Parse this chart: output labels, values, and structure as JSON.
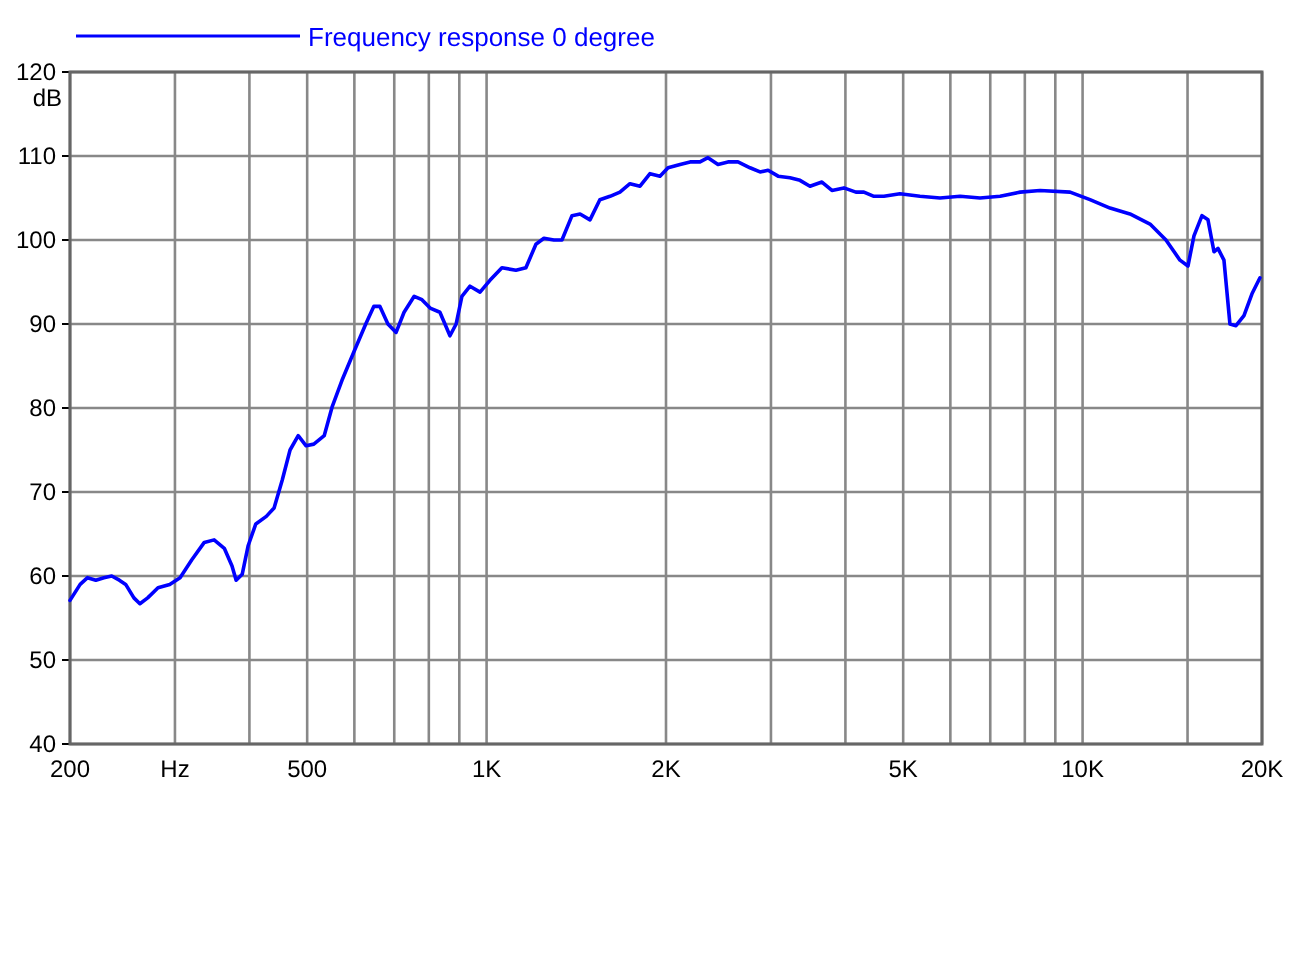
{
  "chart_data": {
    "type": "line",
    "ylabel": "dB",
    "log": "x",
    "grid": true,
    "legend": "top left",
    "line_style": "solid",
    "marker": "none",
    "xlim": [
      200,
      20000
    ],
    "ylim": [
      40,
      120
    ],
    "xticks": [
      {
        "value": 200,
        "label": "200"
      },
      {
        "value": 300,
        "label": "Hz"
      },
      {
        "value": 400,
        "label": null
      },
      {
        "value": 500,
        "label": "500"
      },
      {
        "value": 600,
        "label": null
      },
      {
        "value": 700,
        "label": null
      },
      {
        "value": 800,
        "label": null
      },
      {
        "value": 900,
        "label": null
      },
      {
        "value": 1000,
        "label": "1K"
      },
      {
        "value": 2000,
        "label": "2K"
      },
      {
        "value": 3000,
        "label": null
      },
      {
        "value": 4000,
        "label": null
      },
      {
        "value": 5000,
        "label": "5K"
      },
      {
        "value": 6000,
        "label": null
      },
      {
        "value": 7000,
        "label": null
      },
      {
        "value": 8000,
        "label": null
      },
      {
        "value": 9000,
        "label": null
      },
      {
        "value": 10000,
        "label": "10K"
      },
      {
        "value": 15000,
        "label": null
      },
      {
        "value": 20000,
        "label": "20K"
      }
    ],
    "yticks": [
      40,
      50,
      60,
      70,
      80,
      90,
      100,
      110,
      120
    ],
    "x": [
      200,
      208,
      214,
      221,
      228,
      235,
      242,
      248,
      256,
      262,
      270,
      281,
      294,
      306,
      320,
      336,
      349,
      363,
      374,
      380,
      389,
      398,
      410,
      427,
      440,
      454,
      468,
      483,
      498,
      513,
      534,
      551,
      572,
      599,
      627,
      647,
      662,
      683,
      705,
      727,
      756,
      779,
      804,
      835,
      868,
      889,
      909,
      938,
      975,
      1013,
      1061,
      1120,
      1164,
      1210,
      1248,
      1297,
      1338,
      1391,
      1435,
      1491,
      1549,
      1611,
      1674,
      1740,
      1809,
      1880,
      1954,
      2016,
      2112,
      2195,
      2281,
      2352,
      2445,
      2541,
      2641,
      2767,
      2876,
      2967,
      3084,
      3229,
      3356,
      3488,
      3653,
      3797,
      3977,
      4165,
      4296,
      4466,
      4642,
      4938,
      5335,
      5765,
      6229,
      6729,
      7271,
      7856,
      8484,
      9528,
      10290,
      11118,
      12008,
      12976,
      13800,
      14568,
      15024,
      15377,
      15861,
      16233,
      16614,
      16872,
      17266,
      17670,
      18087,
      18654,
      19240,
      19845
    ],
    "series": [
      {
        "name": "Frequency response 0 degree",
        "color": "#0000ff",
        "values": [
          57.1,
          59,
          59.8,
          59.5,
          59.8,
          60,
          59.5,
          59,
          57.4,
          56.7,
          57.4,
          58.6,
          59,
          59.8,
          61.9,
          64,
          64.3,
          63.3,
          61.2,
          59.5,
          60.2,
          63.6,
          66.2,
          67.1,
          68.1,
          71.4,
          75,
          76.7,
          75.5,
          75.7,
          76.7,
          80.2,
          83.3,
          86.7,
          90,
          92.1,
          92.1,
          90,
          89,
          91.4,
          93.3,
          92.9,
          91.9,
          91.4,
          88.6,
          90,
          93.3,
          94.5,
          93.8,
          95.2,
          96.7,
          96.4,
          96.7,
          99.5,
          100.2,
          100,
          100,
          102.9,
          103.1,
          102.4,
          104.8,
          105.2,
          105.7,
          106.7,
          106.4,
          107.9,
          107.6,
          108.6,
          109,
          109.3,
          109.3,
          109.8,
          109,
          109.3,
          109.3,
          108.6,
          108.1,
          108.3,
          107.6,
          107.4,
          107.1,
          106.4,
          106.9,
          105.9,
          106.2,
          105.7,
          105.7,
          105.2,
          105.2,
          105.5,
          105.2,
          105,
          105.2,
          105,
          105.2,
          105.7,
          105.9,
          105.7,
          104.8,
          103.8,
          103.1,
          101.9,
          100,
          97.6,
          96.9,
          100.5,
          102.9,
          102.4,
          98.6,
          99,
          97.6,
          90,
          89.8,
          91,
          93.6,
          95.5
        ]
      }
    ]
  }
}
